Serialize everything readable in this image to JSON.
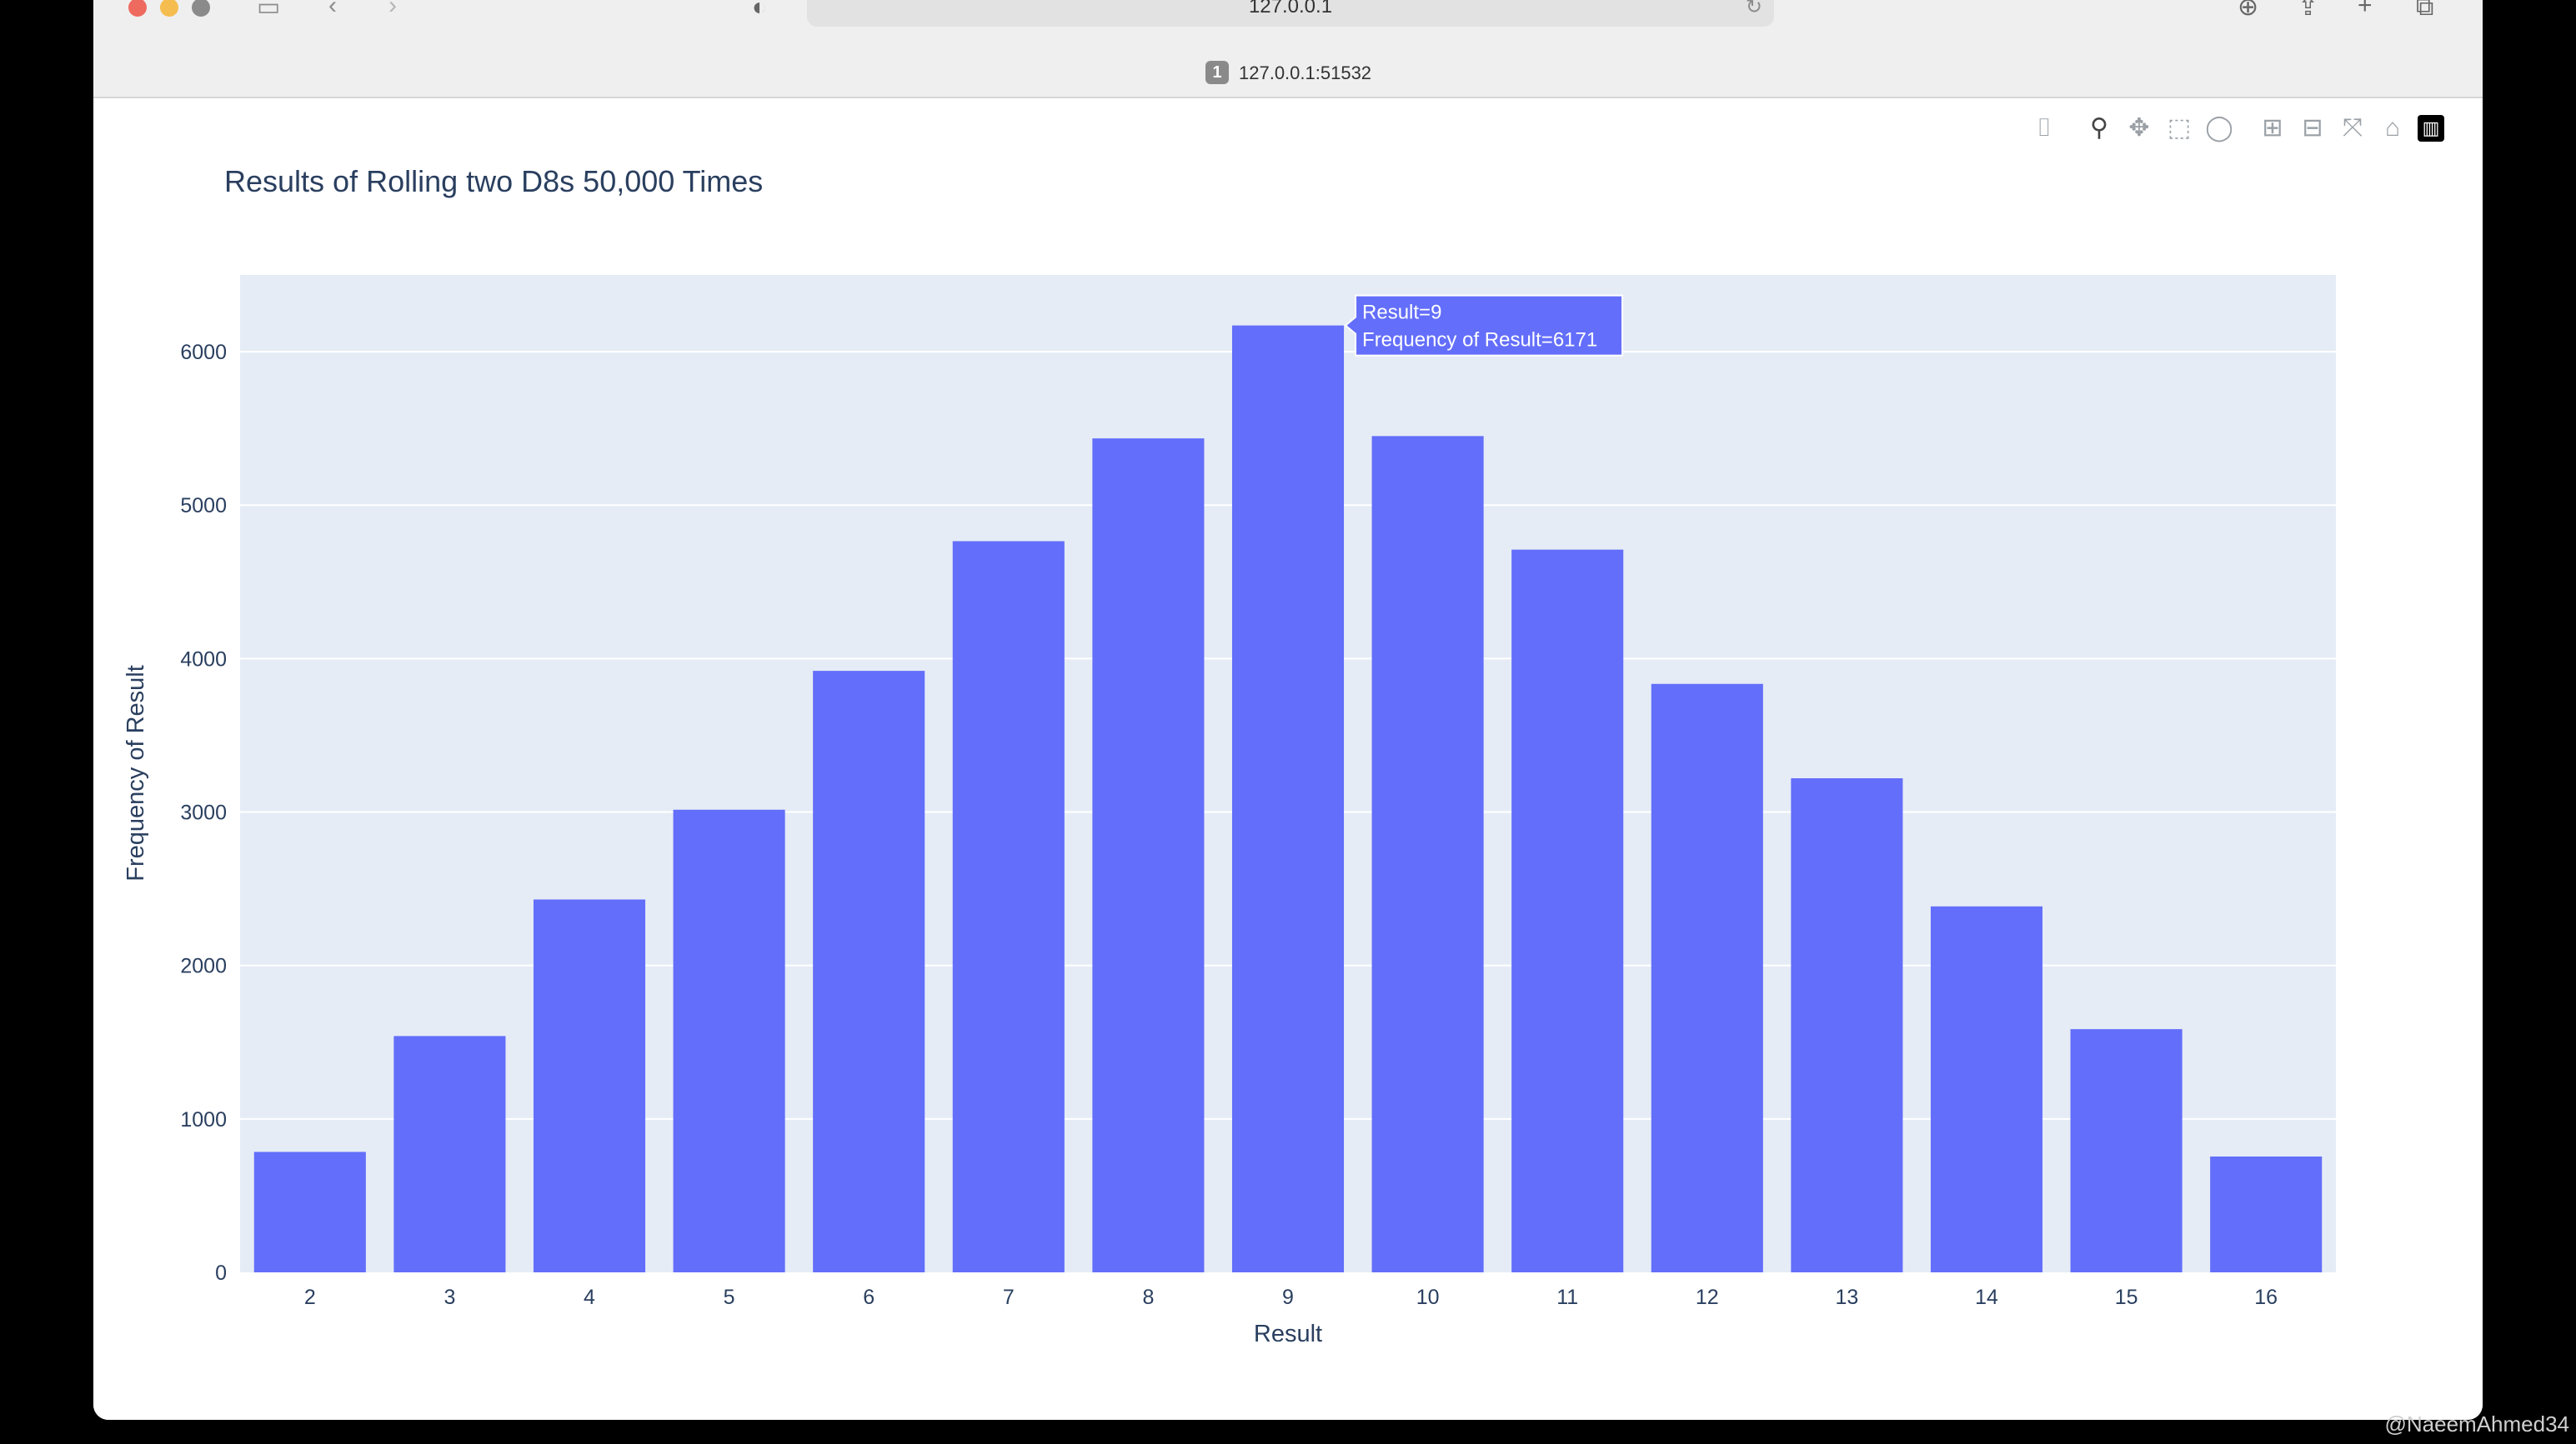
{
  "browser": {
    "address": "127.0.0.1",
    "tab_number": "1",
    "tab_title": "127.0.0.1:51532"
  },
  "modebar": {
    "icons": [
      "camera-icon",
      "zoom-icon",
      "pan-icon",
      "box-select-icon",
      "lasso-icon",
      "zoom-in-icon",
      "zoom-out-icon",
      "autoscale-icon",
      "reset-axes-icon",
      "plotly-logo-icon"
    ]
  },
  "chart_data": {
    "type": "bar",
    "title": "Results of Rolling two D8s 50,000 Times",
    "xlabel": "Result",
    "ylabel": "Frequency of Result",
    "categories": [
      "2",
      "3",
      "4",
      "5",
      "6",
      "7",
      "8",
      "9",
      "10",
      "11",
      "12",
      "13",
      "14",
      "15",
      "16"
    ],
    "values": [
      785,
      1540,
      2430,
      3015,
      3920,
      4765,
      5435,
      6171,
      5450,
      4710,
      3835,
      3220,
      2385,
      1585,
      755
    ],
    "ylim": [
      0,
      6500
    ],
    "yticks": [
      0,
      1000,
      2000,
      3000,
      4000,
      5000,
      6000
    ],
    "grid": true,
    "bar_color": "#636efa",
    "plot_bg": "#e5ecf6",
    "hover": {
      "line1": "Result=9",
      "line2": "Frequency of Result=6171"
    }
  },
  "watermark": "@NaeemAhmed34"
}
